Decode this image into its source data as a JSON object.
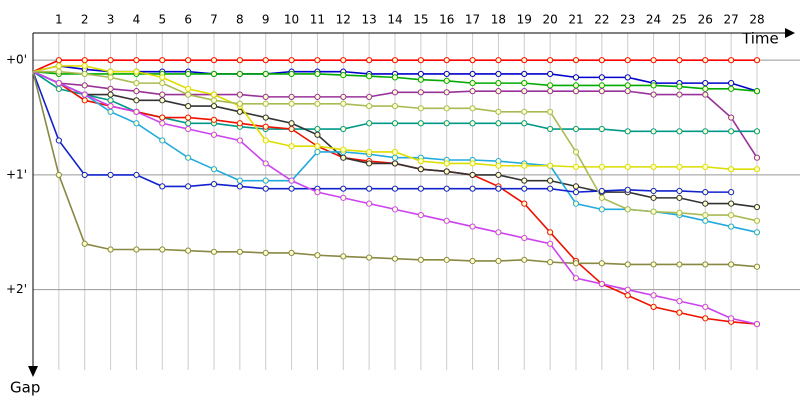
{
  "chart_data": {
    "type": "line",
    "x_label": "Time",
    "y_label": "Gap",
    "x": [
      0,
      1,
      2,
      3,
      4,
      5,
      6,
      7,
      8,
      9,
      10,
      11,
      12,
      13,
      14,
      15,
      16,
      17,
      18,
      19,
      20,
      21,
      22,
      23,
      24,
      25,
      26,
      27,
      28
    ],
    "xlim": [
      0,
      28
    ],
    "xticks": [
      1,
      2,
      3,
      4,
      5,
      6,
      7,
      8,
      9,
      10,
      11,
      12,
      13,
      14,
      15,
      16,
      17,
      18,
      19,
      20,
      21,
      22,
      23,
      24,
      25,
      26,
      27,
      28
    ],
    "ylim": [
      -0.35,
      2.7
    ],
    "yticks": [
      {
        "value": 0,
        "label": "+0'"
      },
      {
        "value": 1,
        "label": "+1'"
      },
      {
        "value": 2,
        "label": "+2'"
      }
    ],
    "grid": true,
    "series": [
      {
        "name": "red",
        "color": "#ff0000",
        "values": [
          0.1,
          0,
          0,
          0,
          0,
          0,
          0,
          0,
          0,
          0,
          0,
          0,
          0,
          0,
          0,
          0,
          0,
          0,
          0,
          0,
          0,
          0,
          0,
          0,
          0,
          0,
          0,
          0,
          0
        ]
      },
      {
        "name": "blue",
        "color": "#0000cc",
        "values": [
          0.1,
          0.05,
          0.08,
          0.1,
          0.1,
          0.1,
          0.1,
          0.12,
          0.12,
          0.12,
          0.1,
          0.1,
          0.1,
          0.12,
          0.12,
          0.12,
          0.12,
          0.12,
          0.12,
          0.12,
          0.12,
          0.15,
          0.15,
          0.15,
          0.2,
          0.2,
          0.2,
          0.2,
          0.27
        ]
      },
      {
        "name": "green",
        "color": "#00aa00",
        "values": [
          0.1,
          0.12,
          0.12,
          0.12,
          0.12,
          0.12,
          0.12,
          0.12,
          0.12,
          0.12,
          0.12,
          0.12,
          0.13,
          0.14,
          0.15,
          0.17,
          0.18,
          0.2,
          0.2,
          0.2,
          0.22,
          0.22,
          0.22,
          0.22,
          0.22,
          0.23,
          0.25,
          0.25,
          0.27
        ]
      },
      {
        "name": "purple",
        "color": "#993399",
        "values": [
          0.1,
          0.2,
          0.22,
          0.25,
          0.27,
          0.3,
          0.3,
          0.3,
          0.3,
          0.32,
          0.32,
          0.32,
          0.32,
          0.32,
          0.28,
          0.28,
          0.28,
          0.27,
          0.27,
          0.27,
          0.27,
          0.27,
          0.27,
          0.27,
          0.3,
          0.3,
          0.3,
          0.5,
          0.85
        ]
      },
      {
        "name": "teal",
        "color": "#009988",
        "values": [
          0.1,
          0.25,
          0.3,
          0.35,
          0.45,
          0.5,
          0.55,
          0.55,
          0.58,
          0.6,
          0.6,
          0.6,
          0.6,
          0.55,
          0.55,
          0.55,
          0.55,
          0.55,
          0.55,
          0.55,
          0.6,
          0.6,
          0.6,
          0.62,
          0.62,
          0.62,
          0.62,
          0.62,
          0.62
        ]
      },
      {
        "name": "dark-red",
        "color": "#ee1100",
        "values": [
          0.1,
          0.2,
          0.35,
          0.4,
          0.45,
          0.5,
          0.5,
          0.52,
          0.55,
          0.58,
          0.6,
          0.75,
          0.85,
          0.88,
          0.9,
          0.95,
          0.97,
          1.0,
          1.1,
          1.25,
          1.5,
          1.75,
          1.95,
          2.05,
          2.15,
          2.2,
          2.25,
          2.28,
          2.3
        ]
      },
      {
        "name": "black",
        "color": "#333333",
        "values": [
          0.1,
          0.2,
          0.3,
          0.3,
          0.35,
          0.35,
          0.4,
          0.4,
          0.45,
          0.5,
          0.55,
          0.65,
          0.85,
          0.9,
          0.9,
          0.95,
          0.97,
          1.0,
          1.0,
          1.05,
          1.05,
          1.1,
          1.15,
          1.15,
          1.2,
          1.2,
          1.25,
          1.25,
          1.28
        ]
      },
      {
        "name": "light-blue",
        "color": "#22aadd",
        "values": [
          0.1,
          0.2,
          0.3,
          0.45,
          0.55,
          0.7,
          0.85,
          0.95,
          1.05,
          1.05,
          1.05,
          0.8,
          0.8,
          0.82,
          0.85,
          0.85,
          0.87,
          0.87,
          0.88,
          0.9,
          0.92,
          1.25,
          1.3,
          1.3,
          1.32,
          1.35,
          1.4,
          1.45,
          1.5
        ]
      },
      {
        "name": "navy",
        "color": "#1122cc",
        "values": [
          0.1,
          0.7,
          1.0,
          1.0,
          1.0,
          1.1,
          1.1,
          1.08,
          1.1,
          1.12,
          1.12,
          1.12,
          1.12,
          1.12,
          1.12,
          1.12,
          1.12,
          1.12,
          1.12,
          1.12,
          1.12,
          1.15,
          1.14,
          1.13,
          1.14,
          1.14,
          1.15,
          1.15,
          null
        ]
      },
      {
        "name": "olive",
        "color": "#888844",
        "values": [
          0.1,
          1.0,
          1.6,
          1.65,
          1.65,
          1.65,
          1.66,
          1.67,
          1.67,
          1.68,
          1.68,
          1.7,
          1.71,
          1.72,
          1.73,
          1.74,
          1.74,
          1.75,
          1.75,
          1.74,
          1.76,
          1.77,
          1.77,
          1.78,
          1.78,
          1.78,
          1.78,
          1.78,
          1.8
        ]
      },
      {
        "name": "magenta",
        "color": "#cc44ee",
        "values": [
          0.1,
          0.2,
          0.3,
          0.4,
          0.45,
          0.55,
          0.6,
          0.65,
          0.7,
          0.9,
          1.05,
          1.15,
          1.2,
          1.25,
          1.3,
          1.35,
          1.4,
          1.45,
          1.5,
          1.55,
          1.6,
          1.9,
          1.95,
          2.0,
          2.05,
          2.1,
          2.15,
          2.25,
          2.3
        ]
      },
      {
        "name": "yellow",
        "color": "#dddd00",
        "values": [
          0.1,
          0.05,
          0.05,
          0.1,
          0.1,
          0.15,
          0.25,
          0.3,
          0.4,
          0.7,
          0.75,
          0.75,
          0.78,
          0.8,
          0.8,
          0.88,
          0.9,
          0.9,
          0.92,
          0.92,
          0.92,
          0.93,
          0.93,
          0.93,
          0.93,
          0.93,
          0.93,
          0.95,
          0.95
        ]
      },
      {
        "name": "yellow-green",
        "color": "#aabb55",
        "values": [
          0.1,
          0.1,
          0.12,
          0.15,
          0.2,
          0.2,
          0.3,
          0.35,
          0.38,
          0.38,
          0.38,
          0.38,
          0.38,
          0.4,
          0.4,
          0.42,
          0.42,
          0.42,
          0.45,
          0.45,
          0.45,
          0.8,
          1.2,
          1.3,
          1.32,
          1.33,
          1.35,
          1.35,
          1.4
        ]
      }
    ]
  }
}
